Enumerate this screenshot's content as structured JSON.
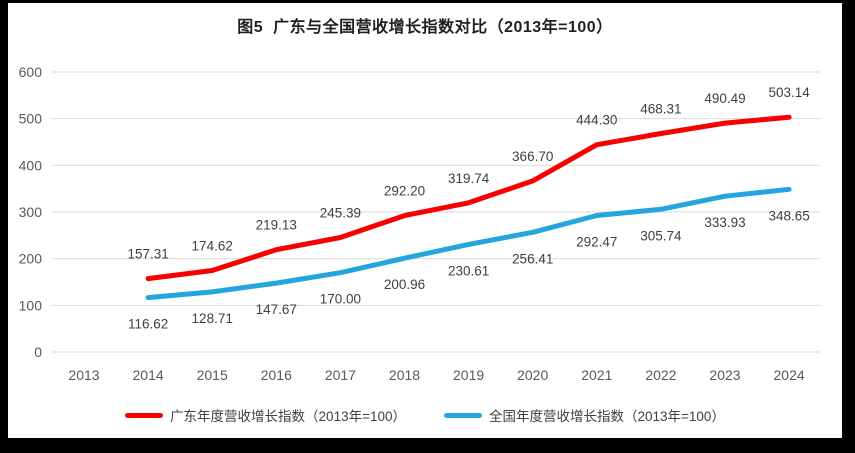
{
  "title": "图5  广东与全国营收增长指数对比（2013年=100）",
  "chart_data": {
    "type": "line",
    "title": "图5  广东与全国营收增长指数对比（2013年=100）",
    "categories": [
      "2013",
      "2014",
      "2015",
      "2016",
      "2017",
      "2018",
      "2019",
      "2020",
      "2021",
      "2022",
      "2023",
      "2024"
    ],
    "series": [
      {
        "name": "广东年度营收增长指数（2013年=100）",
        "color": "#f80000",
        "start_category": "2014",
        "labels_position": "above",
        "values": [
          157.31,
          174.62,
          219.13,
          245.39,
          292.2,
          319.74,
          366.7,
          444.3,
          468.31,
          490.49,
          503.14
        ]
      },
      {
        "name": "全国年度营收增长指数（2013年=100）",
        "color": "#24a5de",
        "start_category": "2014",
        "labels_position": "below",
        "values": [
          116.62,
          128.71,
          147.67,
          170.0,
          200.96,
          230.61,
          256.41,
          292.47,
          305.74,
          333.93,
          348.65
        ]
      }
    ],
    "xlabel": "",
    "ylabel": "",
    "ylim": [
      0,
      600
    ],
    "yticks": [
      0,
      100,
      200,
      300,
      400,
      500,
      600
    ],
    "grid": "horizontal",
    "legend_position": "bottom",
    "data_labels_decimals": 2,
    "colors": {
      "grid": "#d9d9d9",
      "axis_text": "#595959",
      "data_label": "#404040",
      "title": "#1f1f1f",
      "frame": "#000000",
      "background": "#ffffff"
    }
  }
}
